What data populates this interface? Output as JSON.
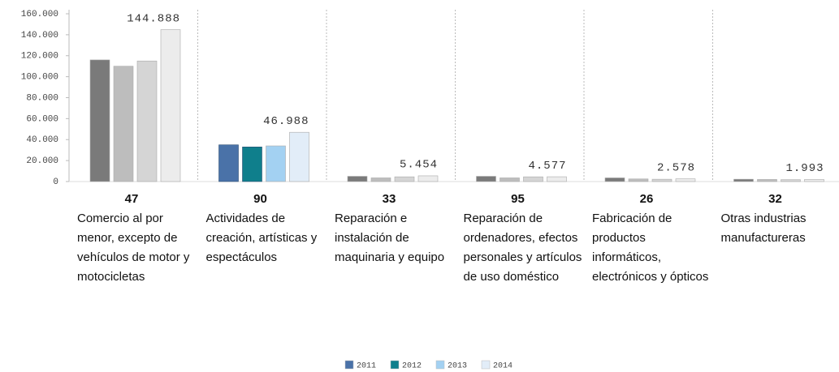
{
  "chart_data": {
    "type": "bar",
    "categories": [
      "47",
      "90",
      "33",
      "95",
      "26",
      "32"
    ],
    "category_descriptions": [
      "Comercio al por menor, excepto de vehículos de motor y motocicletas",
      "Actividades de creación, artísticas y espectáculos",
      "Reparación  e instalación de maquinaria y equipo",
      "Reparación de ordenadores, efectos personales y artículos de uso doméstico",
      "Fabricación de productos informáticos, electrónicos y ópticos",
      "Otras industrias manufactureras"
    ],
    "series": [
      {
        "name": "2011",
        "color": "#4a72a8",
        "colors": [
          "#7a7a7a",
          "#4a72a8",
          "#7a7a7a",
          "#7a7a7a",
          "#7a7a7a",
          "#7a7a7a"
        ],
        "values": [
          116000,
          35000,
          5000,
          5000,
          3500,
          2200
        ]
      },
      {
        "name": "2012",
        "color": "#0f7f8c",
        "colors": [
          "#bdbdbd",
          "#0f7f8c",
          "#bdbdbd",
          "#bdbdbd",
          "#bdbdbd",
          "#bdbdbd"
        ],
        "values": [
          110000,
          33000,
          3500,
          3500,
          2500,
          2000
        ]
      },
      {
        "name": "2013",
        "color": "#a3d1f2",
        "colors": [
          "#d5d5d5",
          "#a3d1f2",
          "#d5d5d5",
          "#d5d5d5",
          "#d5d5d5",
          "#d5d5d5"
        ],
        "values": [
          115000,
          34000,
          4500,
          4500,
          2200,
          1800
        ]
      },
      {
        "name": "2014",
        "color": "#e2edf8",
        "colors": [
          "#ececec",
          "#e2edf8",
          "#ececec",
          "#ececec",
          "#ececec",
          "#ececec"
        ],
        "values": [
          144888,
          46988,
          5454,
          4577,
          2578,
          1993
        ],
        "value_labels": [
          "144.888",
          "46.988",
          "5.454",
          "4.577",
          "2.578",
          "1.993"
        ]
      }
    ],
    "ylim": [
      0,
      160000
    ],
    "yticks": [
      0,
      {
        "value": 20000,
        "label": "20.000"
      },
      {
        "value": 40000,
        "label": "40.000"
      },
      {
        "value": 60000,
        "label": "60.000"
      },
      {
        "value": 80000,
        "label": "80.000"
      },
      {
        "value": 100000,
        "label": "100.000"
      },
      {
        "value": 120000,
        "label": "120.000"
      },
      {
        "value": 140000,
        "label": "140.000"
      },
      {
        "value": 160000,
        "label": "160.000"
      }
    ]
  }
}
